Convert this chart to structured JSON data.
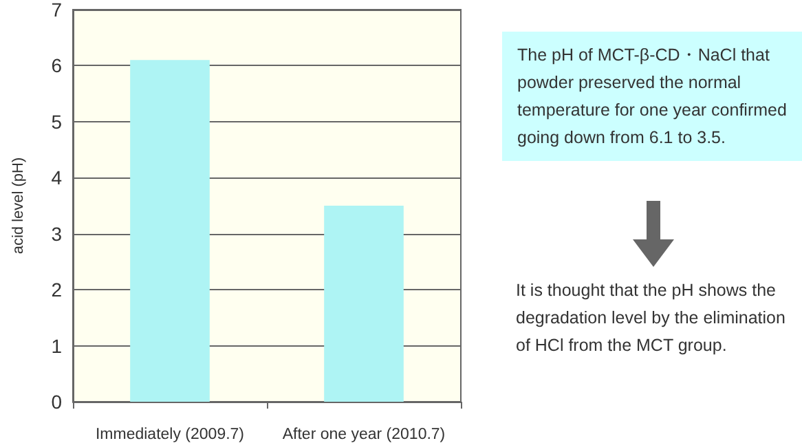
{
  "chart_data": {
    "type": "bar",
    "ylabel": "acid level (pH)",
    "categories": [
      "Immediately (2009.7)",
      "After one year (2010.7)"
    ],
    "values": [
      6.1,
      3.5
    ],
    "color": "#aef4f4",
    "ylim": [
      0,
      7
    ],
    "yticks": [
      0,
      1,
      2,
      3,
      4,
      5,
      6,
      7
    ],
    "grid": "y",
    "annotations": [
      "The pH of MCT-β-CD・NaCl that powder preserved the normal temperature for one year confirmed going down from 6.1 to 3.5.",
      "It is thought that the pH shows the degradation level by the elimination of HCl from the MCT group."
    ]
  }
}
